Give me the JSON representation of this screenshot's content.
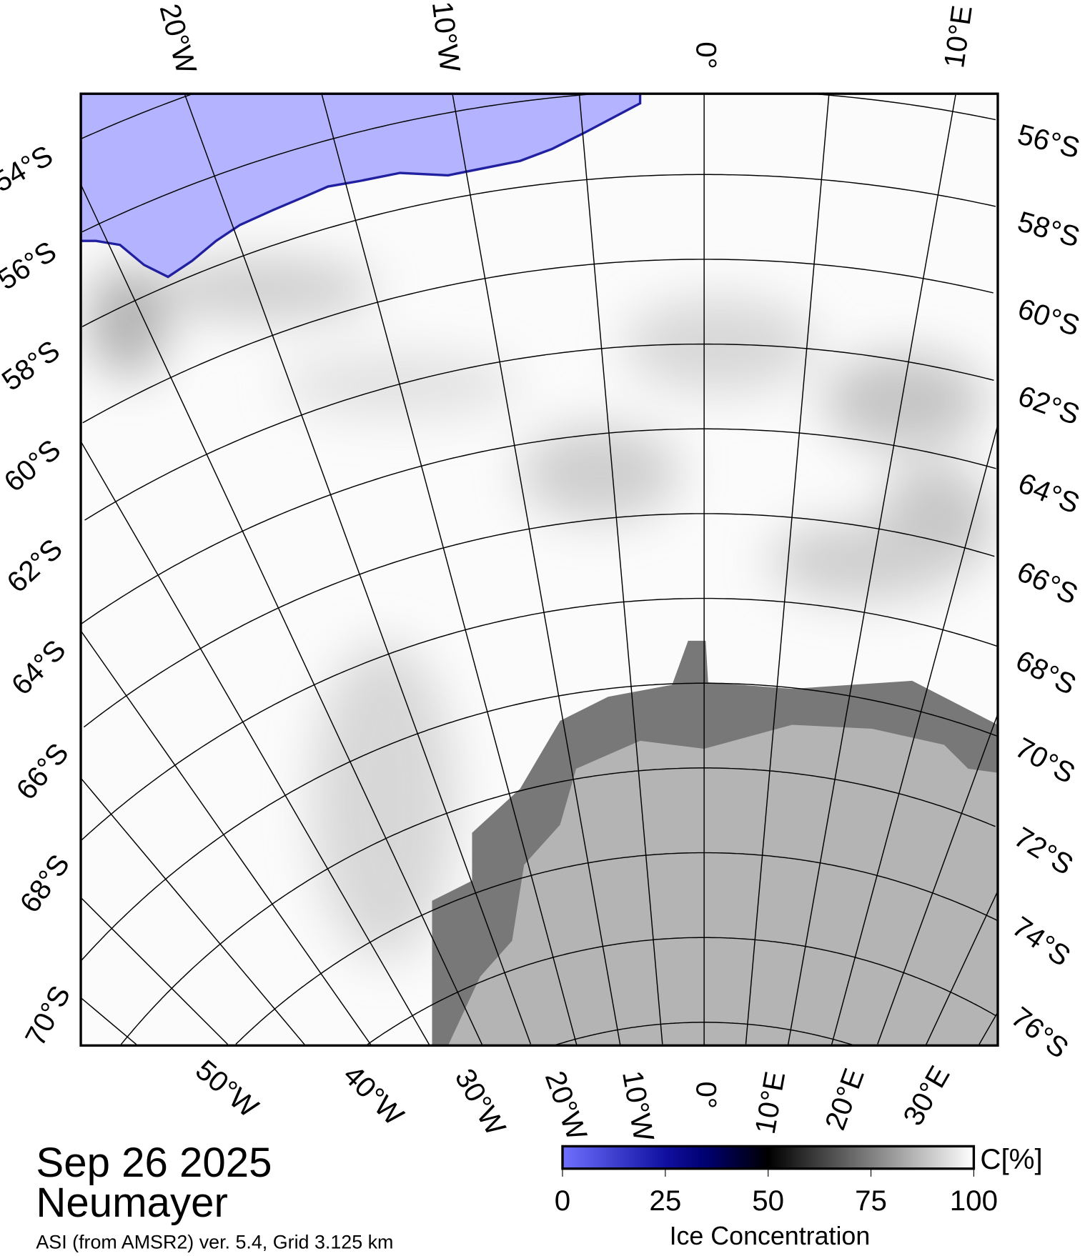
{
  "map": {
    "lat_labels_right": [
      "56°S",
      "58°S",
      "60°S",
      "62°S",
      "64°S",
      "66°S",
      "68°S",
      "70°S",
      "72°S",
      "74°S",
      "76°S"
    ],
    "lat_labels_left": [
      "54°S",
      "56°S",
      "58°S",
      "60°S",
      "62°S",
      "64°S",
      "66°S",
      "68°S",
      "70°S"
    ],
    "lon_labels_top": [
      "20°W",
      "10°W",
      "0°",
      "10°E"
    ],
    "lon_labels_bottom": [
      "50°W",
      "40°W",
      "30°W",
      "20°W",
      "10°W",
      "0°",
      "10°E",
      "20°E",
      "30°E"
    ]
  },
  "legend": {
    "date": "Sep 26 2025",
    "station": "Neumayer",
    "source": "ASI (from AMSR2) ver. 5.4,  Grid 3.125 km",
    "unit": "C[%]",
    "ticks": [
      "0",
      "25",
      "50",
      "75",
      "100"
    ],
    "title": "Ice Concentration",
    "colors": {
      "min": "#7070ff",
      "low": "#000080",
      "mid": "#000000",
      "max": "#ffffff",
      "ocean": "#b3b3ff",
      "land": "#b4b4b4",
      "shelf": "#787878"
    }
  }
}
